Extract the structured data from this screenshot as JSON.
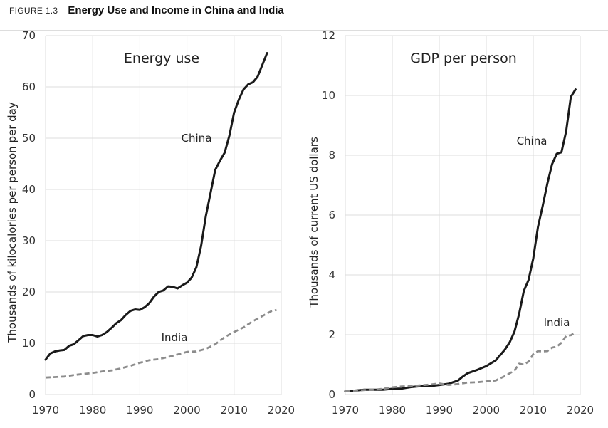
{
  "figure": {
    "label": "FIGURE 1.3",
    "title": "Energy Use and Income in China and India"
  },
  "colors": {
    "china": "#1a1a1a",
    "india": "#8c8c8c",
    "grid": "#dcdcdc"
  },
  "chart_data": [
    {
      "type": "line",
      "title": "Energy use",
      "xlabel": "",
      "ylabel": "Thousands of kilocalories per person per day",
      "xlim": [
        1970,
        2020
      ],
      "ylim": [
        0,
        70
      ],
      "xticks": [
        1970,
        1980,
        1990,
        2000,
        2010,
        2020
      ],
      "yticks": [
        0,
        10,
        20,
        30,
        40,
        50,
        60,
        70
      ],
      "grid": true,
      "series": [
        {
          "name": "China",
          "style": "solid",
          "x": [
            1970,
            1971,
            1972,
            1973,
            1974,
            1975,
            1976,
            1977,
            1978,
            1979,
            1980,
            1981,
            1982,
            1983,
            1984,
            1985,
            1986,
            1987,
            1988,
            1989,
            1990,
            1991,
            1992,
            1993,
            1994,
            1995,
            1996,
            1997,
            1998,
            1999,
            2000,
            2001,
            2002,
            2003,
            2004,
            2005,
            2006,
            2007,
            2008,
            2009,
            2010,
            2011,
            2012,
            2013,
            2014,
            2015,
            2016,
            2017,
            2018,
            2019
          ],
          "y": [
            6.8,
            8.0,
            8.4,
            8.6,
            8.7,
            9.5,
            9.8,
            10.6,
            11.4,
            11.6,
            11.6,
            11.3,
            11.6,
            12.2,
            13.0,
            13.9,
            14.5,
            15.5,
            16.3,
            16.6,
            16.5,
            17.0,
            17.8,
            19.1,
            20.0,
            20.3,
            21.1,
            21.0,
            20.7,
            21.3,
            21.8,
            22.8,
            24.8,
            29.0,
            34.8,
            39.3,
            43.8,
            45.6,
            47.2,
            50.5,
            55.0,
            57.5,
            59.5,
            60.5,
            60.9,
            62.0,
            64.3,
            66.6,
            null,
            null
          ]
        },
        {
          "name": "India",
          "style": "dashed",
          "x": [
            1970,
            1972,
            1974,
            1976,
            1978,
            1980,
            1982,
            1984,
            1986,
            1988,
            1990,
            1992,
            1994,
            1996,
            1998,
            2000,
            2002,
            2004,
            2006,
            2008,
            2010,
            2012,
            2014,
            2016,
            2018,
            2019
          ],
          "y": [
            3.3,
            3.4,
            3.5,
            3.8,
            4.0,
            4.2,
            4.5,
            4.7,
            5.1,
            5.6,
            6.2,
            6.7,
            6.9,
            7.3,
            7.8,
            8.3,
            8.4,
            8.9,
            9.8,
            11.2,
            12.2,
            13.1,
            14.3,
            15.3,
            16.3,
            16.5
          ]
        }
      ]
    },
    {
      "type": "line",
      "title": "GDP per person",
      "xlabel": "",
      "ylabel": "Thousands of current US dollars",
      "xlim": [
        1970,
        2020
      ],
      "ylim": [
        0,
        12
      ],
      "xticks": [
        1970,
        1980,
        1990,
        2000,
        2010,
        2020
      ],
      "yticks": [
        0,
        2,
        4,
        6,
        8,
        10,
        12
      ],
      "grid": true,
      "series": [
        {
          "name": "China",
          "style": "solid",
          "x": [
            1970,
            1972,
            1974,
            1976,
            1978,
            1980,
            1982,
            1984,
            1986,
            1988,
            1990,
            1992,
            1994,
            1995,
            1996,
            1998,
            2000,
            2002,
            2004,
            2005,
            2006,
            2007,
            2008,
            2009,
            2010,
            2011,
            2012,
            2013,
            2014,
            2015,
            2016,
            2017,
            2018,
            2019
          ],
          "y": [
            0.11,
            0.13,
            0.16,
            0.16,
            0.16,
            0.19,
            0.2,
            0.25,
            0.28,
            0.28,
            0.32,
            0.36,
            0.47,
            0.6,
            0.71,
            0.82,
            0.95,
            1.14,
            1.51,
            1.75,
            2.1,
            2.7,
            3.47,
            3.83,
            4.55,
            5.6,
            6.3,
            7.05,
            7.7,
            8.05,
            8.1,
            8.8,
            9.95,
            10.2
          ]
        },
        {
          "name": "India",
          "style": "dashed",
          "x": [
            1970,
            1972,
            1974,
            1976,
            1978,
            1980,
            1982,
            1984,
            1986,
            1988,
            1990,
            1992,
            1994,
            1996,
            1998,
            2000,
            2002,
            2004,
            2006,
            2007,
            2008,
            2009,
            2010,
            2011,
            2012,
            2013,
            2014,
            2015,
            2016,
            2017,
            2018,
            2019
          ],
          "y": [
            0.11,
            0.12,
            0.15,
            0.16,
            0.19,
            0.24,
            0.27,
            0.28,
            0.31,
            0.33,
            0.37,
            0.32,
            0.35,
            0.4,
            0.41,
            0.44,
            0.47,
            0.62,
            0.8,
            1.03,
            1.0,
            1.1,
            1.35,
            1.45,
            1.44,
            1.45,
            1.57,
            1.6,
            1.73,
            1.96,
            1.98,
            2.08
          ]
        }
      ]
    }
  ]
}
